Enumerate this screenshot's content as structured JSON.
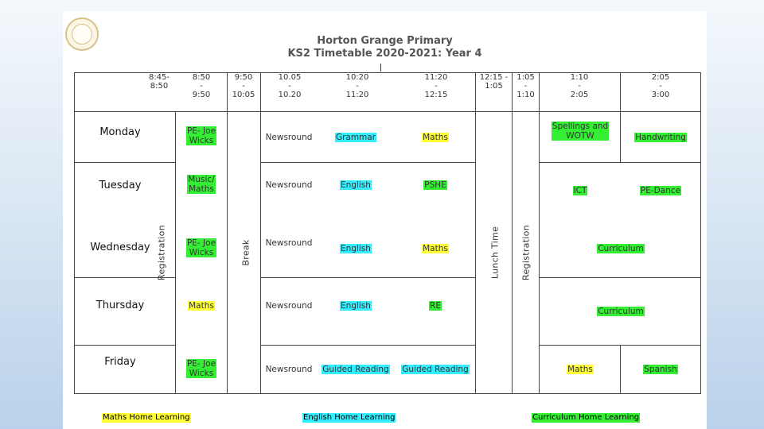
{
  "header": {
    "school_name": "Horton Grange Primary",
    "subtitle": "KS2 Timetable 2020-2021: Year 4"
  },
  "times": [
    {
      "key": "t1",
      "text": "8:45-\n8:50"
    },
    {
      "key": "t2",
      "text": "8:50\n-\n9:50"
    },
    {
      "key": "t3",
      "text": "9:50\n-\n10:05"
    },
    {
      "key": "t4",
      "text": "10.05\n-\n10.20"
    },
    {
      "key": "t5",
      "text": "10:20\n-\n11:20"
    },
    {
      "key": "t6",
      "text": "11:20\n-\n12:15"
    },
    {
      "key": "t7",
      "text": "12:15 -\n1:05"
    },
    {
      "key": "t8",
      "text": "1:05\n-\n1:10"
    },
    {
      "key": "t9",
      "text": "1:10\n-\n2:05"
    },
    {
      "key": "t10",
      "text": "2:05\n-\n3:00"
    }
  ],
  "days": [
    "Monday",
    "Tuesday",
    "Wednesday",
    "Thursday",
    "Friday"
  ],
  "vertical_labels": {
    "registration_am": "Registration",
    "break": "Break",
    "lunch": "Lunch Time",
    "registration_pm": "Registration"
  },
  "lessons": {
    "monday": {
      "session1": {
        "text": "PE- Joe\nWicks",
        "color": "#33ee33"
      },
      "newsround": {
        "text": "Newsround",
        "color": "none"
      },
      "session2": {
        "text": "Grammar",
        "color": "#33eeff"
      },
      "session3": {
        "text": "Maths",
        "color": "#ffff33"
      },
      "pm1": {
        "text": "Spellings and\nWOTW",
        "color": "#33ee33"
      },
      "pm2": {
        "text": "Handwriting",
        "color": "#33ee33"
      }
    },
    "tuesday": {
      "session1": {
        "text": "Music/\nMaths",
        "color": "#33ee33"
      },
      "newsround": {
        "text": "Newsround",
        "color": "none"
      },
      "session2": {
        "text": "English",
        "color": "#33eeff"
      },
      "session3": {
        "text": "PSHE",
        "color": "#33ee33"
      },
      "pm1": {
        "text": "ICT",
        "color": "#33ee33"
      },
      "pm2": {
        "text": "PE-Dance",
        "color": "#33ee33"
      }
    },
    "wednesday": {
      "session1": {
        "text": "PE- Joe\nWicks",
        "color": "#33ee33"
      },
      "newsround": {
        "text": "Newsround",
        "color": "none"
      },
      "session2": {
        "text": "English",
        "color": "#33eeff"
      },
      "session3": {
        "text": "Maths",
        "color": "#ffff33"
      },
      "pm": {
        "text": "Curriculum",
        "color": "#33ee33"
      }
    },
    "thursday": {
      "session1": {
        "text": "Maths",
        "color": "#ffff33"
      },
      "newsround": {
        "text": "Newsround",
        "color": "none"
      },
      "session2": {
        "text": "English",
        "color": "#33eeff"
      },
      "session3": {
        "text": "RE",
        "color": "#33ee33"
      },
      "pm": {
        "text": "Curriculum",
        "color": "#33ee33"
      }
    },
    "friday": {
      "session1": {
        "text": "PE- Joe\nWicks",
        "color": "#33ee33"
      },
      "newsround": {
        "text": "Newsround",
        "color": "none"
      },
      "session2": {
        "text": "Guided Reading",
        "color": "#33eeff"
      },
      "session3": {
        "text": "Guided Reading",
        "color": "#33eeff"
      },
      "pm1": {
        "text": "Maths",
        "color": "#ffff33"
      },
      "pm2": {
        "text": "Spanish",
        "color": "#33ee33"
      }
    }
  },
  "legend": {
    "maths": "Maths Home Learning",
    "english": "English Home Learning",
    "curriculum": "Curriculum Home Learning"
  }
}
